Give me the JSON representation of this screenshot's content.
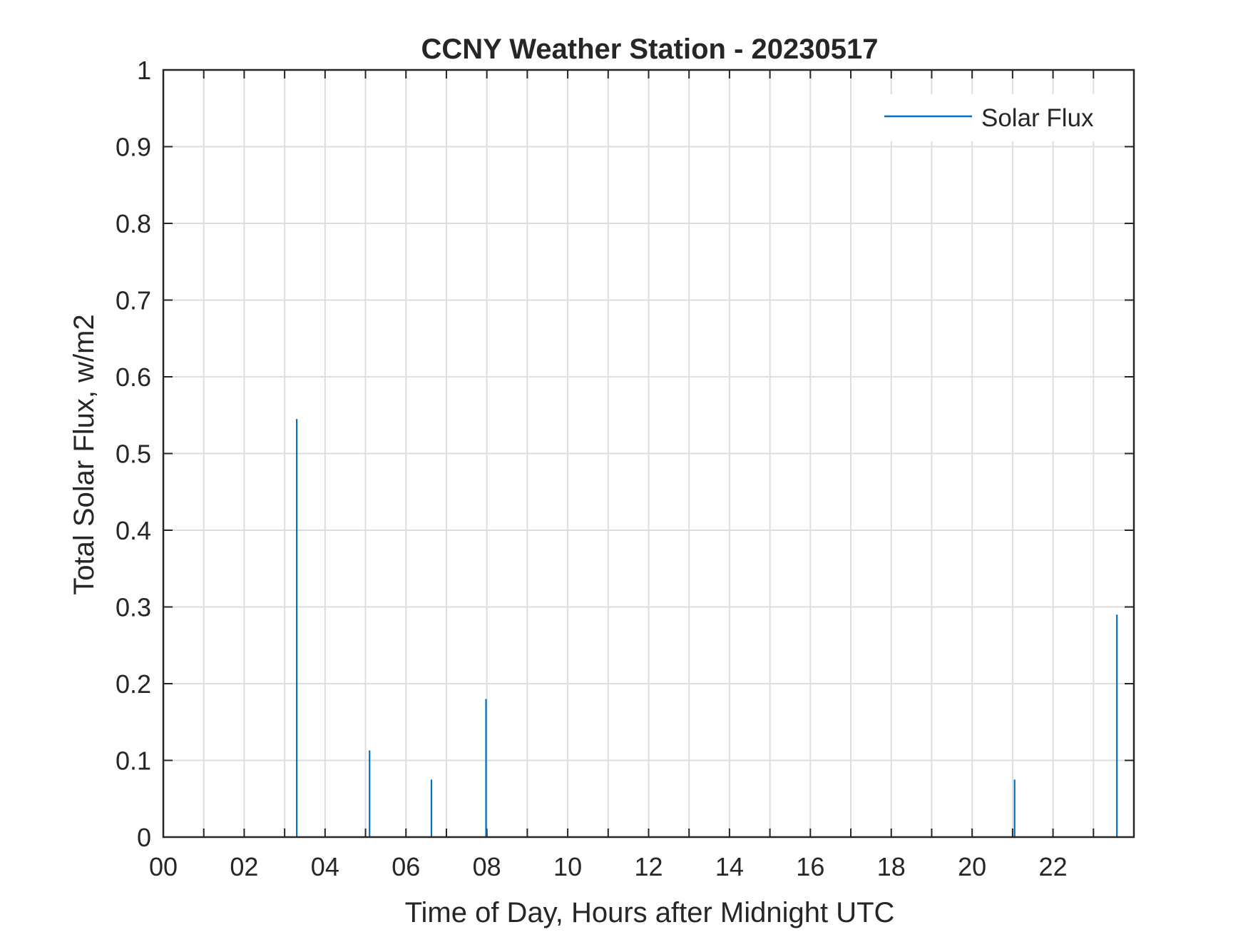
{
  "chart_data": {
    "type": "line",
    "title": "CCNY Weather Station - 20230517",
    "xlabel": "Time of Day, Hours after Midnight UTC",
    "ylabel": "Total Solar Flux, w/m2",
    "xlim": [
      0,
      24
    ],
    "ylim": [
      0,
      1
    ],
    "grid": true,
    "legend_placement": "top-right",
    "x_tick_values": [
      0,
      2,
      4,
      6,
      8,
      10,
      12,
      14,
      16,
      18,
      20,
      22
    ],
    "x_tick_labels": [
      "00",
      "02",
      "04",
      "06",
      "08",
      "10",
      "12",
      "14",
      "16",
      "18",
      "20",
      "22"
    ],
    "y_tick_values": [
      0,
      0.1,
      0.2,
      0.3,
      0.4,
      0.5,
      0.6,
      0.7,
      0.8,
      0.9,
      1
    ],
    "y_tick_labels": [
      "0",
      "0.1",
      "0.2",
      "0.3",
      "0.4",
      "0.5",
      "0.6",
      "0.7",
      "0.8",
      "0.9",
      "1"
    ],
    "series": [
      {
        "name": "Solar Flux",
        "color": "#0072BD",
        "spikes": [
          {
            "x": 3.3,
            "y": 0.545
          },
          {
            "x": 5.1,
            "y": 0.113
          },
          {
            "x": 6.63,
            "y": 0.075
          },
          {
            "x": 7.98,
            "y": 0.18
          },
          {
            "x": 21.05,
            "y": 0.075
          },
          {
            "x": 23.58,
            "y": 0.29
          }
        ]
      }
    ]
  }
}
